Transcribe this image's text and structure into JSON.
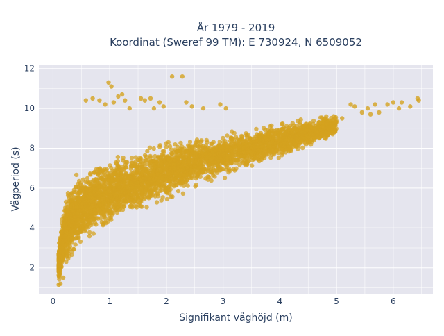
{
  "chart_data": {
    "type": "scatter",
    "title_line1": "År 1979 - 2019",
    "title_line2": "Koordinat (Sweref 99 TM): E 730924, N 6509052",
    "xlabel": "Signifikant våghöjd (m)",
    "ylabel": "Vågperiod (s)",
    "xlim": [
      -0.25,
      6.7
    ],
    "ylim": [
      0.7,
      12.2
    ],
    "x_ticks": [
      0,
      1,
      2,
      3,
      4,
      5,
      6
    ],
    "y_ticks": [
      2,
      4,
      6,
      8,
      10,
      12
    ],
    "grid": true,
    "legend": "none",
    "marker_color": "#d4a21f",
    "plot_bg": "#e5e5ee",
    "band": {
      "x": [
        0.1,
        0.2,
        0.3,
        0.5,
        0.75,
        1.0,
        1.25,
        1.5,
        2.0,
        2.5,
        3.0,
        3.5,
        4.0,
        4.5,
        5.0
      ],
      "lo": [
        1.2,
        1.6,
        2.1,
        2.8,
        3.4,
        3.8,
        4.2,
        4.5,
        5.2,
        5.9,
        6.4,
        6.9,
        7.4,
        7.9,
        8.5
      ],
      "hi": [
        3.2,
        5.6,
        6.4,
        7.0,
        7.4,
        7.7,
        7.9,
        8.1,
        8.5,
        8.7,
        8.9,
        9.2,
        9.4,
        9.6,
        9.8
      ]
    },
    "outliers": [
      {
        "x": 0.58,
        "y": 10.4
      },
      {
        "x": 0.7,
        "y": 10.5
      },
      {
        "x": 0.82,
        "y": 10.4
      },
      {
        "x": 0.92,
        "y": 10.2
      },
      {
        "x": 0.98,
        "y": 11.3
      },
      {
        "x": 1.03,
        "y": 11.1
      },
      {
        "x": 1.07,
        "y": 10.3
      },
      {
        "x": 1.15,
        "y": 10.6
      },
      {
        "x": 1.22,
        "y": 10.7
      },
      {
        "x": 1.27,
        "y": 10.4
      },
      {
        "x": 1.35,
        "y": 10.0
      },
      {
        "x": 1.55,
        "y": 10.5
      },
      {
        "x": 1.62,
        "y": 10.4
      },
      {
        "x": 1.72,
        "y": 10.5
      },
      {
        "x": 1.78,
        "y": 10.0
      },
      {
        "x": 1.88,
        "y": 10.3
      },
      {
        "x": 1.95,
        "y": 10.1
      },
      {
        "x": 2.1,
        "y": 11.6
      },
      {
        "x": 2.28,
        "y": 11.6
      },
      {
        "x": 2.35,
        "y": 10.3
      },
      {
        "x": 2.45,
        "y": 10.1
      },
      {
        "x": 2.65,
        "y": 10.0
      },
      {
        "x": 2.95,
        "y": 10.2
      },
      {
        "x": 3.05,
        "y": 10.0
      },
      {
        "x": 4.8,
        "y": 9.5
      },
      {
        "x": 4.95,
        "y": 9.6
      },
      {
        "x": 5.1,
        "y": 9.5
      },
      {
        "x": 5.25,
        "y": 10.2
      },
      {
        "x": 5.32,
        "y": 10.1
      },
      {
        "x": 5.45,
        "y": 9.8
      },
      {
        "x": 5.55,
        "y": 10.0
      },
      {
        "x": 5.6,
        "y": 9.7
      },
      {
        "x": 5.68,
        "y": 10.2
      },
      {
        "x": 5.75,
        "y": 9.8
      },
      {
        "x": 5.9,
        "y": 10.2
      },
      {
        "x": 6.0,
        "y": 10.3
      },
      {
        "x": 6.1,
        "y": 10.0
      },
      {
        "x": 6.15,
        "y": 10.3
      },
      {
        "x": 6.3,
        "y": 10.1
      },
      {
        "x": 6.43,
        "y": 10.5
      },
      {
        "x": 6.45,
        "y": 10.4
      },
      {
        "x": 0.1,
        "y": 1.15
      },
      {
        "x": 0.13,
        "y": 1.2
      },
      {
        "x": 0.18,
        "y": 1.5
      }
    ],
    "dense_point_count": 3800
  }
}
